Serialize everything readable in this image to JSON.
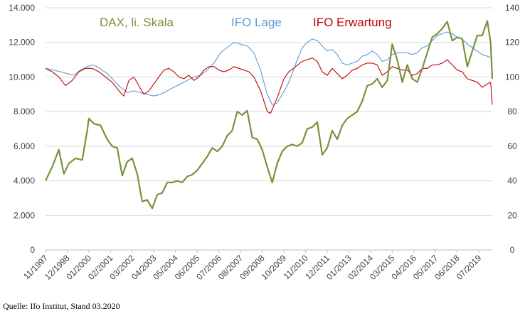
{
  "chart_data": {
    "type": "line",
    "title": "",
    "xlabel": "",
    "source": "Quelle: Ifo Institut, Stand 03.2020",
    "x_ticks": [
      "11/1997",
      "12/1998",
      "01/2000",
      "02/2001",
      "03/2002",
      "04/2003",
      "05/2004",
      "06/2005",
      "07/2006",
      "08/2007",
      "09/2008",
      "10/2009",
      "11/2010",
      "12/2011",
      "01/2013",
      "02/2014",
      "03/2015",
      "04/2016",
      "05/2017",
      "06/2018",
      "07/2019"
    ],
    "x_range": [
      "1997-11",
      "2020-03"
    ],
    "left_axis": {
      "label": "DAX, li. Skala",
      "ylim": [
        0,
        14000
      ],
      "ticks": [
        "0",
        "2.000",
        "4.000",
        "6.000",
        "8.000",
        "10.000",
        "12.000",
        "14.000"
      ]
    },
    "right_axis": {
      "ylim": [
        0,
        140
      ],
      "ticks": [
        "0",
        "20",
        "40",
        "60",
        "80",
        "100",
        "120",
        "140"
      ]
    },
    "grid": true,
    "legend_placement": "top",
    "series": [
      {
        "name": "DAX, li. Skala",
        "axis": "left",
        "color": "#77933C",
        "points": [
          [
            "1997-11",
            4000
          ],
          [
            "1998-03",
            4800
          ],
          [
            "1998-07",
            5800
          ],
          [
            "1998-10",
            4400
          ],
          [
            "1999-01",
            5000
          ],
          [
            "1999-05",
            5300
          ],
          [
            "1999-09",
            5200
          ],
          [
            "1999-12",
            6900
          ],
          [
            "2000-01",
            7600
          ],
          [
            "2000-04",
            7300
          ],
          [
            "2000-08",
            7200
          ],
          [
            "2000-12",
            6400
          ],
          [
            "2001-03",
            6000
          ],
          [
            "2001-06",
            5900
          ],
          [
            "2001-09",
            4300
          ],
          [
            "2001-12",
            5100
          ],
          [
            "2002-03",
            5300
          ],
          [
            "2002-06",
            4400
          ],
          [
            "2002-09",
            2800
          ],
          [
            "2002-12",
            2900
          ],
          [
            "2003-03",
            2400
          ],
          [
            "2003-06",
            3200
          ],
          [
            "2003-09",
            3300
          ],
          [
            "2003-12",
            3900
          ],
          [
            "2004-03",
            3900
          ],
          [
            "2004-06",
            4000
          ],
          [
            "2004-09",
            3900
          ],
          [
            "2004-12",
            4250
          ],
          [
            "2005-03",
            4350
          ],
          [
            "2005-06",
            4600
          ],
          [
            "2005-09",
            5000
          ],
          [
            "2005-12",
            5400
          ],
          [
            "2006-03",
            5900
          ],
          [
            "2006-06",
            5700
          ],
          [
            "2006-09",
            6000
          ],
          [
            "2006-12",
            6600
          ],
          [
            "2007-03",
            6900
          ],
          [
            "2007-06",
            8000
          ],
          [
            "2007-09",
            7800
          ],
          [
            "2007-12",
            8050
          ],
          [
            "2008-03",
            6500
          ],
          [
            "2008-06",
            6400
          ],
          [
            "2008-09",
            5800
          ],
          [
            "2008-12",
            4800
          ],
          [
            "2009-03",
            3900
          ],
          [
            "2009-06",
            5000
          ],
          [
            "2009-09",
            5700
          ],
          [
            "2009-12",
            6000
          ],
          [
            "2010-03",
            6100
          ],
          [
            "2010-06",
            6000
          ],
          [
            "2010-09",
            6200
          ],
          [
            "2010-12",
            7000
          ],
          [
            "2011-03",
            7100
          ],
          [
            "2011-06",
            7400
          ],
          [
            "2011-09",
            5500
          ],
          [
            "2011-12",
            5900
          ],
          [
            "2012-03",
            6900
          ],
          [
            "2012-06",
            6400
          ],
          [
            "2012-09",
            7200
          ],
          [
            "2012-12",
            7600
          ],
          [
            "2013-03",
            7800
          ],
          [
            "2013-06",
            8000
          ],
          [
            "2013-09",
            8600
          ],
          [
            "2013-12",
            9500
          ],
          [
            "2014-03",
            9600
          ],
          [
            "2014-06",
            9900
          ],
          [
            "2014-09",
            9400
          ],
          [
            "2014-12",
            9800
          ],
          [
            "2015-03",
            11900
          ],
          [
            "2015-06",
            11000
          ],
          [
            "2015-09",
            9700
          ],
          [
            "2015-12",
            10700
          ],
          [
            "2016-03",
            9900
          ],
          [
            "2016-06",
            9700
          ],
          [
            "2016-09",
            10500
          ],
          [
            "2016-12",
            11400
          ],
          [
            "2017-03",
            12300
          ],
          [
            "2017-06",
            12500
          ],
          [
            "2017-09",
            12800
          ],
          [
            "2017-12",
            13200
          ],
          [
            "2018-03",
            12100
          ],
          [
            "2018-06",
            12300
          ],
          [
            "2018-09",
            12200
          ],
          [
            "2018-12",
            10600
          ],
          [
            "2019-03",
            11500
          ],
          [
            "2019-06",
            12400
          ],
          [
            "2019-09",
            12400
          ],
          [
            "2019-12",
            13250
          ],
          [
            "2020-02",
            12000
          ],
          [
            "2020-03",
            9900
          ]
        ]
      },
      {
        "name": "IFO Lage",
        "axis": "right",
        "color": "#5B9BD5",
        "points": [
          [
            "1997-11",
            105
          ],
          [
            "1998-04",
            104
          ],
          [
            "1998-08",
            103
          ],
          [
            "1998-12",
            102
          ],
          [
            "1999-04",
            101
          ],
          [
            "1999-08",
            104
          ],
          [
            "1999-12",
            106
          ],
          [
            "2000-03",
            107
          ],
          [
            "2000-06",
            106
          ],
          [
            "2000-09",
            104
          ],
          [
            "2000-12",
            102
          ],
          [
            "2001-04",
            98
          ],
          [
            "2001-08",
            94
          ],
          [
            "2001-12",
            91
          ],
          [
            "2002-04",
            92
          ],
          [
            "2002-08",
            91
          ],
          [
            "2002-12",
            90
          ],
          [
            "2003-04",
            89
          ],
          [
            "2003-08",
            90
          ],
          [
            "2003-12",
            92
          ],
          [
            "2004-04",
            94
          ],
          [
            "2004-08",
            96
          ],
          [
            "2004-12",
            98
          ],
          [
            "2005-04",
            100
          ],
          [
            "2005-08",
            101
          ],
          [
            "2005-12",
            104
          ],
          [
            "2006-04",
            108
          ],
          [
            "2006-08",
            114
          ],
          [
            "2006-12",
            117
          ],
          [
            "2007-04",
            120
          ],
          [
            "2007-08",
            119
          ],
          [
            "2007-12",
            118
          ],
          [
            "2008-04",
            114
          ],
          [
            "2008-08",
            104
          ],
          [
            "2008-12",
            90
          ],
          [
            "2009-03",
            84
          ],
          [
            "2009-06",
            85
          ],
          [
            "2009-09",
            90
          ],
          [
            "2009-12",
            95
          ],
          [
            "2010-03",
            102
          ],
          [
            "2010-06",
            110
          ],
          [
            "2010-09",
            117
          ],
          [
            "2010-12",
            120
          ],
          [
            "2011-03",
            122
          ],
          [
            "2011-06",
            121
          ],
          [
            "2011-09",
            118
          ],
          [
            "2011-12",
            115
          ],
          [
            "2012-03",
            116
          ],
          [
            "2012-06",
            113
          ],
          [
            "2012-09",
            108
          ],
          [
            "2012-12",
            107
          ],
          [
            "2013-03",
            108
          ],
          [
            "2013-06",
            109
          ],
          [
            "2013-09",
            112
          ],
          [
            "2013-12",
            113
          ],
          [
            "2014-03",
            115
          ],
          [
            "2014-06",
            113
          ],
          [
            "2014-09",
            109
          ],
          [
            "2014-12",
            110
          ],
          [
            "2015-03",
            113
          ],
          [
            "2015-06",
            114
          ],
          [
            "2015-09",
            114
          ],
          [
            "2015-12",
            114
          ],
          [
            "2016-03",
            113
          ],
          [
            "2016-06",
            114
          ],
          [
            "2016-09",
            117
          ],
          [
            "2016-12",
            118
          ],
          [
            "2017-03",
            121
          ],
          [
            "2017-06",
            124
          ],
          [
            "2017-09",
            125
          ],
          [
            "2017-12",
            126
          ],
          [
            "2018-03",
            125
          ],
          [
            "2018-06",
            123
          ],
          [
            "2018-09",
            122
          ],
          [
            "2018-12",
            119
          ],
          [
            "2019-03",
            117
          ],
          [
            "2019-06",
            115
          ],
          [
            "2019-09",
            113
          ],
          [
            "2019-12",
            112
          ],
          [
            "2020-03",
            111
          ]
        ]
      },
      {
        "name": "IFO Erwartung",
        "axis": "right",
        "color": "#C00000",
        "points": [
          [
            "1997-11",
            105
          ],
          [
            "1998-03",
            103
          ],
          [
            "1998-07",
            100
          ],
          [
            "1998-11",
            95
          ],
          [
            "1999-03",
            98
          ],
          [
            "1999-07",
            103
          ],
          [
            "1999-11",
            105
          ],
          [
            "2000-03",
            105
          ],
          [
            "2000-07",
            103
          ],
          [
            "2000-11",
            100
          ],
          [
            "2001-03",
            97
          ],
          [
            "2001-07",
            92
          ],
          [
            "2001-10",
            89
          ],
          [
            "2002-01",
            98
          ],
          [
            "2002-04",
            100
          ],
          [
            "2002-07",
            95
          ],
          [
            "2002-10",
            90
          ],
          [
            "2003-01",
            92
          ],
          [
            "2003-04",
            96
          ],
          [
            "2003-07",
            100
          ],
          [
            "2003-10",
            104
          ],
          [
            "2004-01",
            105
          ],
          [
            "2004-04",
            103
          ],
          [
            "2004-07",
            100
          ],
          [
            "2004-10",
            99
          ],
          [
            "2005-01",
            101
          ],
          [
            "2005-04",
            98
          ],
          [
            "2005-07",
            100
          ],
          [
            "2005-10",
            104
          ],
          [
            "2006-01",
            106
          ],
          [
            "2006-04",
            106
          ],
          [
            "2006-07",
            104
          ],
          [
            "2006-10",
            103
          ],
          [
            "2007-01",
            104
          ],
          [
            "2007-04",
            106
          ],
          [
            "2007-07",
            105
          ],
          [
            "2007-10",
            104
          ],
          [
            "2008-01",
            103
          ],
          [
            "2008-04",
            100
          ],
          [
            "2008-08",
            92
          ],
          [
            "2008-12",
            80
          ],
          [
            "2009-02",
            79
          ],
          [
            "2009-06",
            88
          ],
          [
            "2009-10",
            99
          ],
          [
            "2010-01",
            103
          ],
          [
            "2010-05",
            106
          ],
          [
            "2010-09",
            109
          ],
          [
            "2010-12",
            110
          ],
          [
            "2011-03",
            111
          ],
          [
            "2011-06",
            109
          ],
          [
            "2011-09",
            103
          ],
          [
            "2011-12",
            101
          ],
          [
            "2012-03",
            105
          ],
          [
            "2012-06",
            102
          ],
          [
            "2012-09",
            99
          ],
          [
            "2012-12",
            101
          ],
          [
            "2013-03",
            104
          ],
          [
            "2013-06",
            105
          ],
          [
            "2013-09",
            107
          ],
          [
            "2013-12",
            108
          ],
          [
            "2014-03",
            108
          ],
          [
            "2014-06",
            107
          ],
          [
            "2014-09",
            101
          ],
          [
            "2014-12",
            103
          ],
          [
            "2015-03",
            106
          ],
          [
            "2015-06",
            105
          ],
          [
            "2015-09",
            104
          ],
          [
            "2015-12",
            104
          ],
          [
            "2016-03",
            101
          ],
          [
            "2016-06",
            102
          ],
          [
            "2016-09",
            105
          ],
          [
            "2016-12",
            105
          ],
          [
            "2017-03",
            107
          ],
          [
            "2017-06",
            107
          ],
          [
            "2017-09",
            108
          ],
          [
            "2017-12",
            110
          ],
          [
            "2018-03",
            107
          ],
          [
            "2018-06",
            104
          ],
          [
            "2018-09",
            103
          ],
          [
            "2018-12",
            99
          ],
          [
            "2019-03",
            98
          ],
          [
            "2019-06",
            97
          ],
          [
            "2019-09",
            94
          ],
          [
            "2019-12",
            96
          ],
          [
            "2020-02",
            97
          ],
          [
            "2020-03",
            84
          ]
        ]
      }
    ]
  }
}
